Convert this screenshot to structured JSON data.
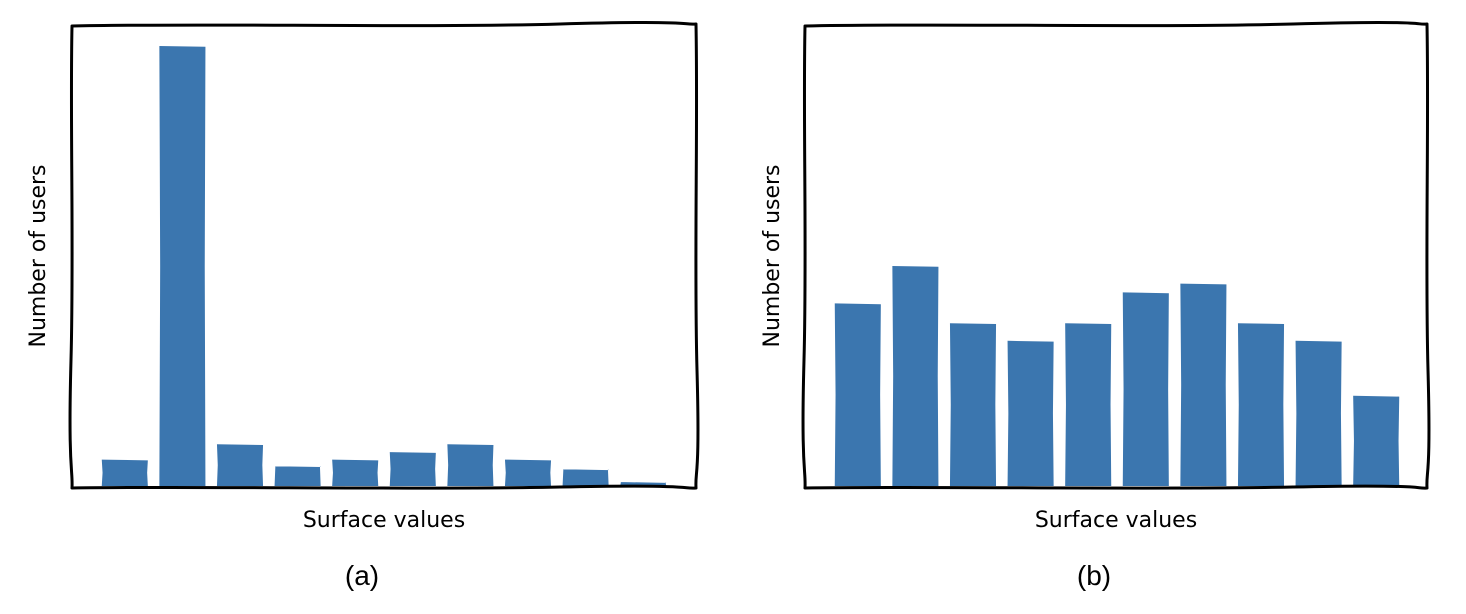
{
  "chart_data": [
    {
      "type": "bar",
      "panel_caption": "(a)",
      "xlabel": "Surface values",
      "ylabel": "Number of users",
      "ylim": [
        0,
        100
      ],
      "color": "#3b76af",
      "values": [
        6,
        100,
        9.5,
        4.5,
        6,
        7.7,
        9.5,
        6,
        3.8,
        0.9
      ],
      "ticks": false,
      "grid": false,
      "style": "sketch"
    },
    {
      "type": "bar",
      "panel_caption": "(b)",
      "xlabel": "Surface values",
      "ylabel": "Number of users",
      "ylim": [
        0,
        100
      ],
      "color": "#3b76af",
      "values": [
        41.5,
        50,
        37,
        33,
        37,
        44,
        46,
        37,
        33,
        20.5
      ],
      "ticks": false,
      "grid": false,
      "style": "sketch"
    }
  ]
}
